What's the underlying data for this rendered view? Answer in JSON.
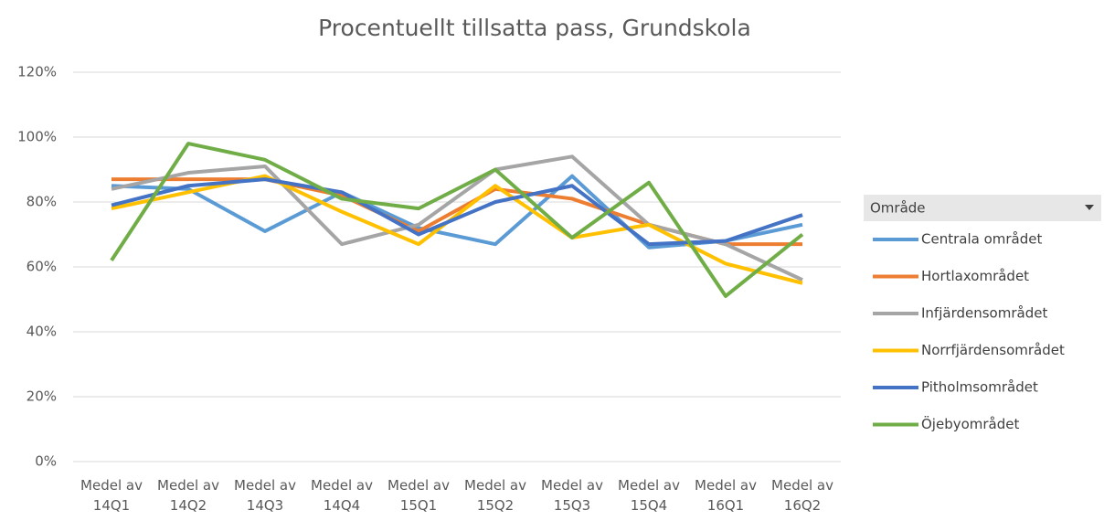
{
  "chart_data": {
    "type": "line",
    "title": "Procentuellt tillsatta pass, Grundskola",
    "categories": [
      "Medel av 14Q1",
      "Medel av 14Q2",
      "Medel av 14Q3",
      "Medel av 14Q4",
      "Medel av 15Q1",
      "Medel av 15Q2",
      "Medel av 15Q3",
      "Medel av 15Q4",
      "Medel av 16Q1",
      "Medel av 16Q2"
    ],
    "legend_title": "Område",
    "series": [
      {
        "name": "Centrala området",
        "color": "#5b9bd5",
        "values": [
          85,
          84,
          71,
          83,
          72,
          67,
          88,
          66,
          68,
          73
        ]
      },
      {
        "name": "Hortlaxområdet",
        "color": "#ed7d31",
        "values": [
          87,
          87,
          87,
          82,
          71,
          84,
          81,
          73,
          67,
          67
        ]
      },
      {
        "name": "Infjärdensområdet",
        "color": "#a5a5a5",
        "values": [
          84,
          89,
          91,
          67,
          73,
          90,
          94,
          73,
          67,
          56
        ]
      },
      {
        "name": "Norrfjärdensområdet",
        "color": "#ffc000",
        "values": [
          78,
          83,
          88,
          77,
          67,
          85,
          69,
          73,
          61,
          55
        ]
      },
      {
        "name": "Pitholmsområdet",
        "color": "#4472c4",
        "values": [
          79,
          85,
          87,
          83,
          70,
          80,
          85,
          67,
          68,
          76
        ]
      },
      {
        "name": "Öjebyområdet",
        "color": "#70ad47",
        "values": [
          62,
          98,
          93,
          81,
          78,
          90,
          69,
          86,
          51,
          70
        ]
      }
    ],
    "ylim": [
      0,
      120
    ],
    "yticks": [
      {
        "value": 0,
        "label": "0%"
      },
      {
        "value": 20,
        "label": "20%"
      },
      {
        "value": 40,
        "label": "40%"
      },
      {
        "value": 60,
        "label": "60%"
      },
      {
        "value": 80,
        "label": "80%"
      },
      {
        "value": 100,
        "label": "100%"
      },
      {
        "value": 120,
        "label": "120%"
      }
    ],
    "grid": true,
    "legend": "right"
  }
}
